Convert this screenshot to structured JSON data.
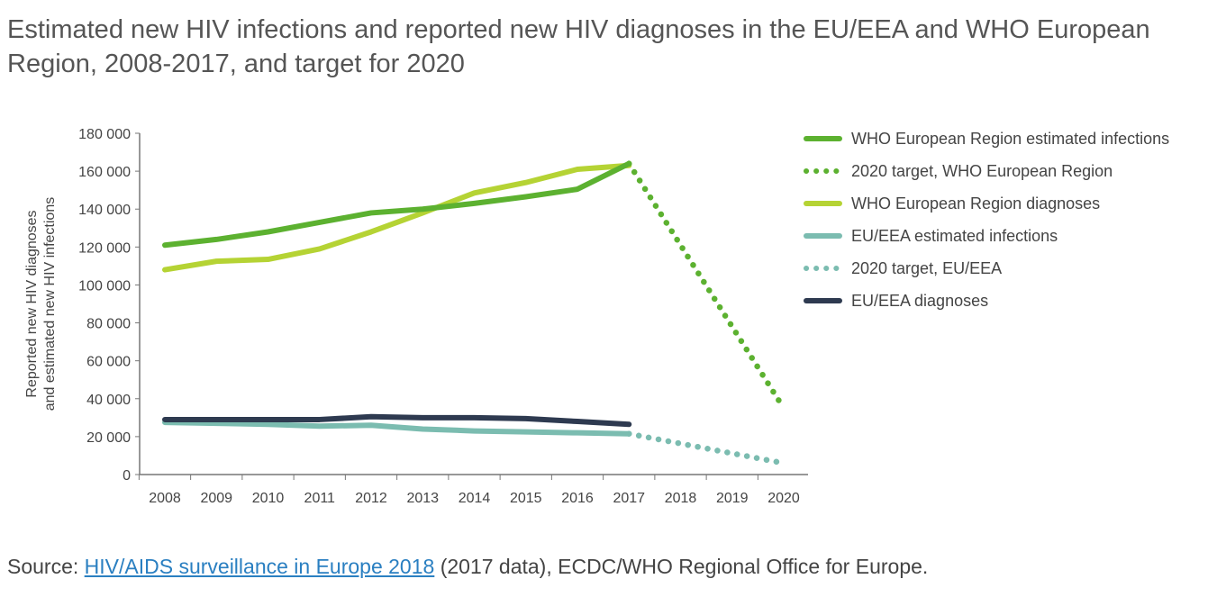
{
  "title": "Estimated new HIV infections and reported new HIV diagnoses in the EU/EEA and WHO European Region, 2008-2017, and target for 2020",
  "source": {
    "prefix": "Source: ",
    "link_text": "HIV/AIDS surveillance in Europe 2018",
    "suffix": " (2017 data), ECDC/WHO Regional Office for Europe."
  },
  "chart_data": {
    "type": "line",
    "ylabel": "Reported new HIV diagnoses and estimated new HIV infections",
    "ylim": [
      0,
      180000
    ],
    "yticks": [
      "0",
      "20 000",
      "40 000",
      "60 000",
      "80 000",
      "100 000",
      "120 000",
      "140 000",
      "160 000",
      "180 000"
    ],
    "x": [
      2008,
      2009,
      2010,
      2011,
      2012,
      2013,
      2014,
      2015,
      2016,
      2017,
      2018,
      2019,
      2020
    ],
    "legend_position": "right",
    "grid": false,
    "series": [
      {
        "name": "WHO European Region estimated infections",
        "color": "#5cb130",
        "dashed": false,
        "x": [
          2008,
          2009,
          2010,
          2011,
          2012,
          2013,
          2014,
          2015,
          2016,
          2017
        ],
        "values": [
          121000,
          124000,
          128000,
          133000,
          138000,
          140000,
          143000,
          146500,
          150500,
          164000
        ]
      },
      {
        "name": "2020 target, WHO European Region",
        "color": "#5cb130",
        "dashed": true,
        "x": [
          2017,
          2020
        ],
        "values": [
          164000,
          35000
        ]
      },
      {
        "name": "WHO European Region diagnoses",
        "color": "#b5d334",
        "dashed": false,
        "x": [
          2008,
          2009,
          2010,
          2011,
          2012,
          2013,
          2014,
          2015,
          2016,
          2017
        ],
        "values": [
          108000,
          112500,
          113500,
          119000,
          128000,
          138000,
          148500,
          154000,
          161000,
          163000
        ]
      },
      {
        "name": "EU/EEA estimated infections",
        "color": "#7bbcb0",
        "dashed": false,
        "x": [
          2008,
          2009,
          2010,
          2011,
          2012,
          2013,
          2014,
          2015,
          2016,
          2017
        ],
        "values": [
          27500,
          27000,
          26500,
          25500,
          26000,
          24000,
          23000,
          22500,
          22000,
          21500
        ]
      },
      {
        "name": "2020 target, EU/EEA",
        "color": "#7bbcb0",
        "dashed": true,
        "x": [
          2017,
          2020
        ],
        "values": [
          21500,
          6000
        ]
      },
      {
        "name": "EU/EEA diagnoses",
        "color": "#2e3a50",
        "dashed": false,
        "x": [
          2008,
          2009,
          2010,
          2011,
          2012,
          2013,
          2014,
          2015,
          2016,
          2017
        ],
        "values": [
          29000,
          29000,
          29000,
          29000,
          30500,
          30000,
          30000,
          29500,
          28000,
          26500
        ]
      }
    ]
  }
}
